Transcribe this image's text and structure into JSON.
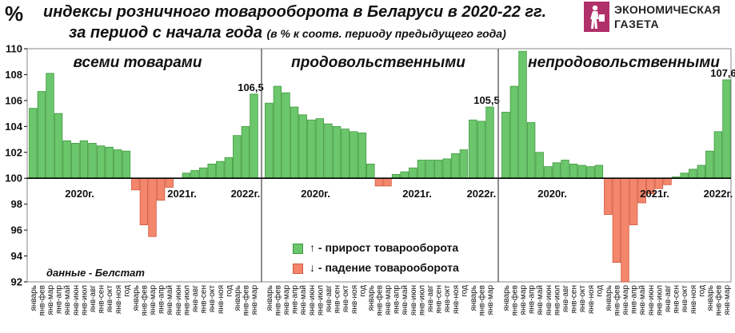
{
  "header": {
    "unit": "%",
    "title": "индексы розничного товарооборота в Беларуси в 2020-22 гг.",
    "subtitle": "за период с начала года",
    "subtitle_note": "(в % к соотв. периоду предыдущего года)"
  },
  "logo": {
    "line1": "ЭКОНОМИЧЕСКАЯ",
    "line2": "ГАЗЕТА"
  },
  "legend": {
    "growth": "↑ - прирост товарооборота",
    "decline": "↓ - падение товарооборота"
  },
  "source": "данные - Белстат",
  "colors": {
    "growth": "#6cc66c",
    "growth_stroke": "#3f9a3f",
    "decline": "#f4866c",
    "decline_stroke": "#d0593f",
    "baseline": "#000000"
  },
  "chart_data": {
    "type": "bar",
    "ylim": [
      92,
      110
    ],
    "yticks": [
      92,
      94,
      96,
      98,
      100,
      102,
      104,
      106,
      108,
      110
    ],
    "baseline": 100,
    "grid": false,
    "legend_position": "bottom-center",
    "year_labels": [
      "2020г.",
      "2021г.",
      "2022г."
    ],
    "categories": {
      "2020": [
        "январь",
        "янв-фев",
        "янв-мар",
        "янв-апр",
        "янв-май",
        "янв-июн",
        "янв-июл",
        "янв-авг",
        "янв-сен",
        "янв-окт",
        "янв-ноя",
        "год"
      ],
      "2021": [
        "январь",
        "янв-фев",
        "янв-мар",
        "янв-апр",
        "янв-май",
        "янв-июн",
        "янв-июл",
        "янв-авг",
        "янв-сен",
        "янв-окт",
        "янв-ноя",
        "год"
      ],
      "2022": [
        "январь",
        "янв-фев",
        "янв-мар"
      ]
    },
    "panels": [
      {
        "title": "всеми товарами",
        "annotation": "106,5",
        "values": {
          "2020": [
            105.4,
            106.7,
            108.1,
            105.0,
            102.9,
            102.7,
            102.9,
            102.7,
            102.5,
            102.4,
            102.2,
            102.1
          ],
          "2021": [
            99.1,
            96.4,
            95.5,
            98.3,
            99.3,
            100.0,
            100.4,
            100.6,
            100.8,
            101.1,
            101.3,
            101.6
          ],
          "2022": [
            103.3,
            104.0,
            106.5
          ]
        }
      },
      {
        "title": "продовольственными",
        "annotation": "105,5",
        "values": {
          "2020": [
            105.8,
            107.1,
            106.6,
            105.5,
            104.9,
            104.5,
            104.6,
            104.2,
            104.0,
            103.8,
            103.6,
            103.5
          ],
          "2021": [
            101.1,
            99.4,
            99.4,
            100.3,
            100.5,
            100.8,
            101.4,
            101.4,
            101.4,
            101.5,
            101.9,
            102.2
          ],
          "2022": [
            104.5,
            104.4,
            105.5
          ]
        }
      },
      {
        "title": "непродовольственными",
        "annotation": "107,6",
        "values": {
          "2020": [
            105.1,
            107.1,
            109.8,
            104.3,
            102.0,
            100.9,
            101.2,
            101.4,
            101.1,
            101.0,
            100.9,
            101.0
          ],
          "2021": [
            97.2,
            93.5,
            92.0,
            96.4,
            98.1,
            98.8,
            99.2,
            99.5,
            100.1,
            100.4,
            100.7,
            101.0
          ],
          "2022": [
            102.1,
            103.6,
            107.6
          ]
        }
      }
    ]
  }
}
